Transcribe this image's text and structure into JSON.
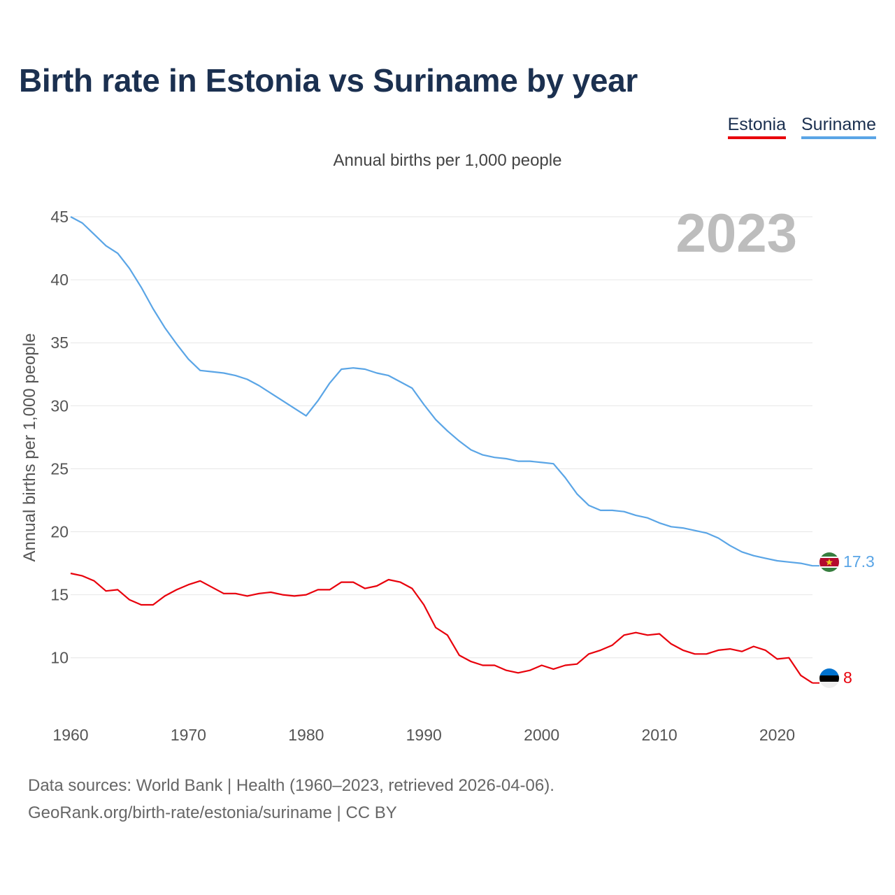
{
  "title": "Birth rate in Estonia vs Suriname by year",
  "subtitle": "Annual births per 1,000 people",
  "legend": [
    {
      "name": "Estonia",
      "color": "#e8000b"
    },
    {
      "name": "Suriname",
      "color": "#5aa5e6"
    }
  ],
  "footer": {
    "line1": "Data sources: World Bank | Health (1960–2023, retrieved 2026-04-06).",
    "line2": "GeoRank.org/birth-rate/estonia/suriname | CC BY"
  },
  "chart_data": {
    "type": "line",
    "title": "Birth rate in Estonia vs Suriname by year",
    "ylabel": "Annual births per 1,000 people",
    "xlabel": "",
    "year_label": "2023",
    "xlim": [
      1960,
      2023
    ],
    "ylim": [
      5.6,
      45
    ],
    "x_ticks": [
      1960,
      1970,
      1980,
      1990,
      2000,
      2010,
      2020
    ],
    "y_ticks": [
      10,
      15,
      20,
      25,
      30,
      35,
      40,
      45
    ],
    "grid": true,
    "x": [
      1960,
      1961,
      1962,
      1963,
      1964,
      1965,
      1966,
      1967,
      1968,
      1969,
      1970,
      1971,
      1972,
      1973,
      1974,
      1975,
      1976,
      1977,
      1978,
      1979,
      1980,
      1981,
      1982,
      1983,
      1984,
      1985,
      1986,
      1987,
      1988,
      1989,
      1990,
      1991,
      1992,
      1993,
      1994,
      1995,
      1996,
      1997,
      1998,
      1999,
      2000,
      2001,
      2002,
      2003,
      2004,
      2005,
      2006,
      2007,
      2008,
      2009,
      2010,
      2011,
      2012,
      2013,
      2014,
      2015,
      2016,
      2017,
      2018,
      2019,
      2020,
      2021,
      2022,
      2023
    ],
    "series": [
      {
        "name": "Estonia",
        "color": "#e8000b",
        "end_label": "8",
        "values": [
          16.7,
          16.5,
          16.1,
          15.3,
          15.4,
          14.6,
          14.2,
          14.2,
          14.9,
          15.4,
          15.8,
          16.1,
          15.6,
          15.1,
          15.1,
          14.9,
          15.1,
          15.2,
          15.0,
          14.9,
          15.0,
          15.4,
          15.4,
          16.0,
          16.0,
          15.5,
          15.7,
          16.2,
          16.0,
          15.5,
          14.2,
          12.4,
          11.8,
          10.2,
          9.7,
          9.4,
          9.4,
          9.0,
          8.8,
          9.0,
          9.4,
          9.1,
          9.4,
          9.5,
          10.3,
          10.6,
          11.0,
          11.8,
          12.0,
          11.8,
          11.9,
          11.1,
          10.6,
          10.3,
          10.3,
          10.6,
          10.7,
          10.5,
          10.9,
          10.6,
          9.9,
          10.0,
          8.6,
          8.0
        ]
      },
      {
        "name": "Suriname",
        "color": "#5aa5e6",
        "end_label": "17.3",
        "values": [
          45.0,
          44.5,
          43.6,
          42.7,
          42.1,
          40.9,
          39.4,
          37.7,
          36.2,
          34.9,
          33.7,
          32.8,
          32.7,
          32.6,
          32.4,
          32.1,
          31.6,
          31.0,
          30.4,
          29.8,
          29.2,
          30.4,
          31.8,
          32.9,
          33.0,
          32.9,
          32.6,
          32.4,
          31.9,
          31.4,
          30.1,
          28.9,
          28.0,
          27.2,
          26.5,
          26.1,
          25.9,
          25.8,
          25.6,
          25.6,
          25.5,
          25.4,
          24.3,
          23.0,
          22.1,
          21.7,
          21.7,
          21.6,
          21.3,
          21.1,
          20.7,
          20.4,
          20.3,
          20.1,
          19.9,
          19.5,
          18.9,
          18.4,
          18.1,
          17.9,
          17.7,
          17.6,
          17.5,
          17.3
        ]
      }
    ]
  }
}
